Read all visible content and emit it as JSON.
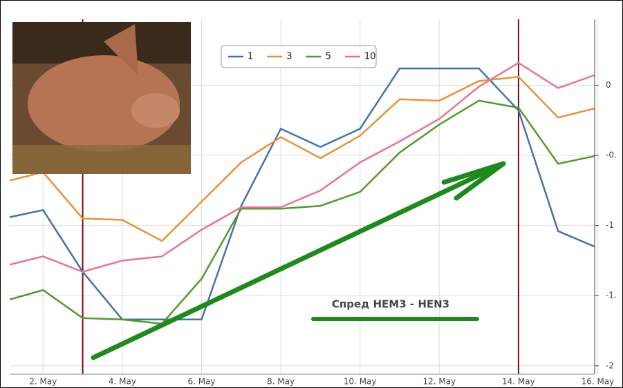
{
  "chart_data": {
    "type": "line",
    "categories": [
      null,
      "2. May",
      null,
      "4. May",
      null,
      "6. May",
      null,
      "8. May",
      null,
      "10. May",
      null,
      "12. May",
      null,
      "14. May",
      null,
      "16. May"
    ],
    "series": [
      {
        "name": "1",
        "color": "#4572a7",
        "values": [
          -0.95,
          -0.89,
          -1.33,
          -1.67,
          -1.67,
          -1.67,
          -0.86,
          -0.31,
          -0.44,
          -0.31,
          0.12,
          0.12,
          0.12,
          -0.18,
          -1.04,
          -1.16
        ]
      },
      {
        "name": "3",
        "color": "#e8913a",
        "values": [
          -0.69,
          -0.62,
          -0.95,
          -0.96,
          -1.11,
          -0.83,
          -0.55,
          -0.37,
          -0.52,
          -0.36,
          -0.1,
          -0.11,
          0.03,
          0.06,
          -0.23,
          -0.16
        ]
      },
      {
        "name": "5",
        "color": "#4f9a2e",
        "values": [
          -1.54,
          -1.46,
          -1.66,
          -1.67,
          -1.7,
          -1.38,
          -0.88,
          -0.88,
          -0.86,
          -0.76,
          -0.48,
          -0.28,
          -0.11,
          -0.16,
          -0.56,
          -0.5
        ]
      },
      {
        "name": "10",
        "color": "#e8748f",
        "values": [
          -1.29,
          -1.22,
          -1.33,
          -1.25,
          -1.22,
          -1.03,
          -0.87,
          -0.87,
          -0.75,
          -0.55,
          -0.4,
          -0.24,
          -0.01,
          0.16,
          -0.02,
          0.08
        ]
      }
    ],
    "ylim": [
      -2.05,
      0.46
    ],
    "yticks": [
      0,
      {
        "value": -0.5,
        "label": "-0."
      },
      -1,
      {
        "value": -1.5,
        "label": "-1."
      },
      -2
    ],
    "grid": true,
    "vlines": [
      2,
      13
    ],
    "vline_color": "#7a0a0a",
    "annotation": "Спред HEM3 - HEN3",
    "annotation_color": "#1e8a1e"
  }
}
